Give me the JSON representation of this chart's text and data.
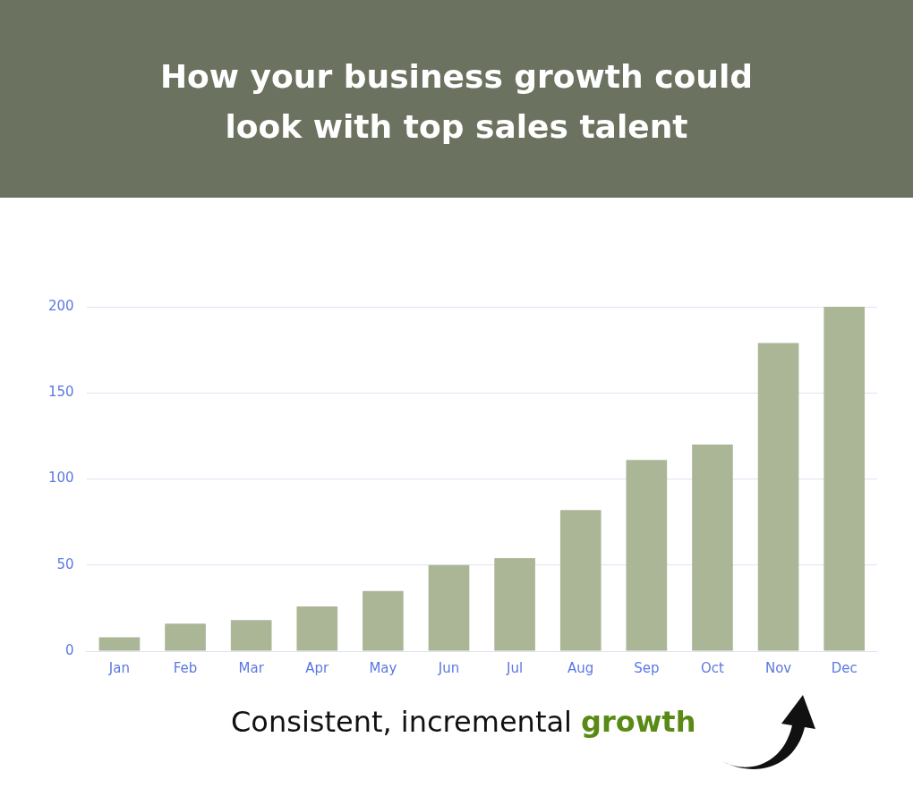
{
  "chart_data": {
    "type": "bar",
    "title": "How your business growth could look with top sales talent",
    "categories": [
      "Jan",
      "Feb",
      "Mar",
      "Apr",
      "May",
      "Jun",
      "Jul",
      "Aug",
      "Sep",
      "Oct",
      "Nov",
      "Dec"
    ],
    "values": [
      8,
      16,
      18,
      26,
      35,
      50,
      54,
      82,
      111,
      120,
      179,
      200
    ],
    "color": "#abb697",
    "ylim": [
      0,
      200
    ],
    "yticks": [
      0,
      50,
      100,
      150,
      200
    ],
    "grid": "y",
    "annotations": [
      "Consistent, incremental growth"
    ]
  }
}
